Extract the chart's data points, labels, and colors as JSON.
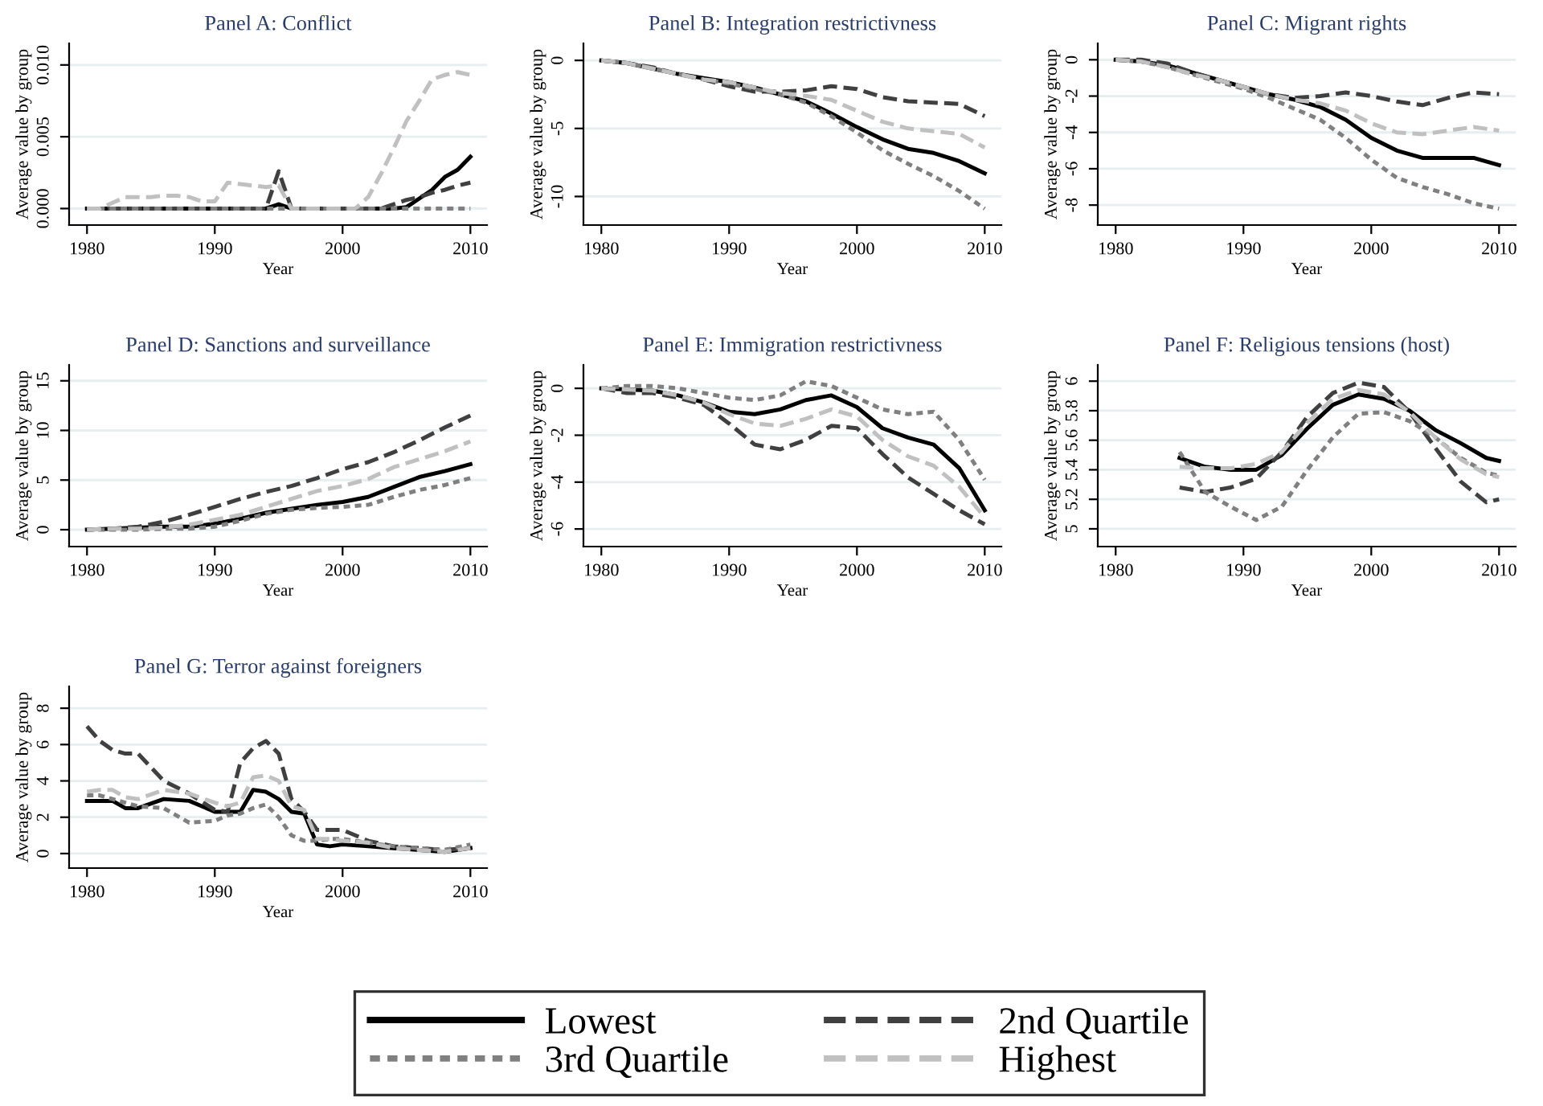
{
  "chart_data": [
    {
      "type": "line",
      "title": "Panel A: Conflict",
      "xlabel": "Year",
      "ylabel": "Average value by group",
      "x": [
        1980,
        1981,
        1982,
        1983,
        1984,
        1985,
        1986,
        1987,
        1988,
        1989,
        1990,
        1991,
        1992,
        1993,
        1994,
        1995,
        1996,
        1997,
        1998,
        1999,
        2000,
        2001,
        2002,
        2003,
        2004,
        2005,
        2006,
        2007,
        2008,
        2009,
        2010
      ],
      "xlim": [
        1978.6,
        2011.3
      ],
      "xticks": [
        1980,
        1990,
        2000,
        2010
      ],
      "ylim": [
        -0.00115,
        0.0115
      ],
      "yticks": [
        {
          "value": 0,
          "label": "0.000"
        },
        {
          "value": 0.005,
          "label": "0.005"
        },
        {
          "value": 0.01,
          "label": "0.010"
        }
      ],
      "grid": "y",
      "legend": "bottom",
      "series": [
        {
          "name": "Lowest",
          "color": "#000000",
          "line_style": "solid",
          "values": [
            0,
            0,
            0,
            0,
            0,
            0,
            0,
            0,
            0,
            0,
            0,
            0,
            0,
            0,
            0,
            0.0003,
            0,
            0,
            0,
            0,
            0,
            0,
            0,
            0,
            0,
            0.0001,
            0.0007,
            0.0013,
            0.0022,
            0.0027,
            0.0036
          ]
        },
        {
          "name": "2nd Quartile",
          "color": "#404040",
          "line_style": "dashed",
          "values": [
            0,
            0,
            0,
            0,
            0,
            0,
            0,
            0,
            0,
            0,
            0,
            0,
            0,
            0,
            0,
            0.0026,
            0,
            0,
            0,
            0,
            0,
            0,
            0,
            0,
            0.0003,
            0.0006,
            0.0008,
            0.0011,
            0.0013,
            0.0016,
            0.0018
          ]
        },
        {
          "name": "3rd Quartile",
          "color": "#808080",
          "line_style": "dotted",
          "values": [
            0,
            0,
            0,
            0,
            0,
            0,
            0,
            0,
            0,
            0,
            0,
            0,
            0,
            0,
            0,
            0,
            0,
            0,
            0,
            0,
            0,
            0,
            0,
            0,
            0,
            0,
            0,
            0,
            0,
            0,
            0
          ]
        },
        {
          "name": "Highest",
          "color": "#c0c0c0",
          "line_style": "dashed",
          "values": [
            0,
            0,
            0.0004,
            0.0008,
            0.0008,
            0.0008,
            0.0009,
            0.0009,
            0.0008,
            0.0005,
            0.0005,
            0.0018,
            0.0017,
            0.0016,
            0.0015,
            0.0016,
            0,
            0,
            0,
            0,
            0,
            0,
            0.0008,
            0.0024,
            0.0042,
            0.0061,
            0.0075,
            0.009,
            0.0093,
            0.0095,
            0.0093
          ]
        }
      ]
    },
    {
      "type": "line",
      "title": "Panel B: Integration restrictivness",
      "xlabel": "Year",
      "ylabel": "Average value by group",
      "x": [
        1980,
        1982,
        1984,
        1986,
        1988,
        1990,
        1992,
        1994,
        1996,
        1998,
        2000,
        2002,
        2004,
        2006,
        2008,
        2010
      ],
      "xlim": [
        1978.6,
        2011.3
      ],
      "xticks": [
        1980,
        1990,
        2000,
        2010
      ],
      "ylim": [
        -12.1,
        1.25
      ],
      "yticks": [
        0,
        -5,
        -10
      ],
      "grid": "y",
      "series": [
        {
          "color": "#000000",
          "line_style": "solid",
          "values": [
            0,
            -0.2,
            -0.6,
            -1.0,
            -1.3,
            -1.6,
            -2.0,
            -2.5,
            -3.0,
            -3.9,
            -4.9,
            -5.8,
            -6.5,
            -6.8,
            -7.4,
            -8.3
          ]
        },
        {
          "color": "#404040",
          "line_style": "dashed",
          "values": [
            0,
            -0.2,
            -0.5,
            -1.0,
            -1.4,
            -1.9,
            -2.3,
            -2.3,
            -2.2,
            -1.9,
            -2.1,
            -2.7,
            -3.0,
            -3.1,
            -3.2,
            -4.1
          ]
        },
        {
          "color": "#808080",
          "line_style": "dotted",
          "values": [
            0,
            -0.2,
            -0.6,
            -1.0,
            -1.4,
            -1.7,
            -2.1,
            -2.5,
            -3.1,
            -4.1,
            -5.3,
            -6.6,
            -7.6,
            -8.5,
            -9.6,
            -10.9
          ]
        },
        {
          "color": "#c0c0c0",
          "line_style": "dashed",
          "values": [
            0,
            -0.2,
            -0.6,
            -1.0,
            -1.4,
            -1.6,
            -2.0,
            -2.4,
            -2.6,
            -2.9,
            -3.7,
            -4.5,
            -5.0,
            -5.2,
            -5.4,
            -6.4
          ]
        }
      ]
    },
    {
      "type": "line",
      "title": "Panel C: Migrant rights",
      "xlabel": "Year",
      "ylabel": "Average value by group",
      "x": [
        1980,
        1982,
        1984,
        1986,
        1988,
        1990,
        1992,
        1994,
        1996,
        1998,
        2000,
        2002,
        2004,
        2006,
        2008,
        2010
      ],
      "xlim": [
        1978.6,
        2011.3
      ],
      "xticks": [
        1980,
        1990,
        2000,
        2010
      ],
      "ylim": [
        -9.1,
        0.9
      ],
      "yticks": [
        0,
        -2,
        -4,
        -6,
        -8
      ],
      "grid": "y",
      "series": [
        {
          "color": "#000000",
          "line_style": "solid",
          "values": [
            0,
            -0.1,
            -0.3,
            -0.7,
            -1.1,
            -1.5,
            -1.9,
            -2.2,
            -2.6,
            -3.3,
            -4.3,
            -5.0,
            -5.4,
            -5.4,
            -5.4,
            -5.8
          ]
        },
        {
          "color": "#404040",
          "line_style": "dashed",
          "values": [
            0,
            0,
            -0.2,
            -0.7,
            -1.1,
            -1.5,
            -1.9,
            -2.1,
            -2.0,
            -1.8,
            -2.0,
            -2.3,
            -2.5,
            -2.1,
            -1.8,
            -1.9
          ]
        },
        {
          "color": "#808080",
          "line_style": "dotted",
          "values": [
            0,
            -0.1,
            -0.4,
            -0.8,
            -1.2,
            -1.6,
            -2.1,
            -2.7,
            -3.3,
            -4.3,
            -5.5,
            -6.5,
            -7.0,
            -7.4,
            -7.9,
            -8.2
          ]
        },
        {
          "color": "#c0c0c0",
          "line_style": "dashed",
          "values": [
            0,
            -0.1,
            -0.4,
            -0.8,
            -1.1,
            -1.5,
            -1.9,
            -2.2,
            -2.4,
            -2.8,
            -3.5,
            -4.0,
            -4.1,
            -3.9,
            -3.7,
            -3.9
          ]
        }
      ]
    },
    {
      "type": "line",
      "title": "Panel D: Sanctions and surveillance",
      "xlabel": "Year",
      "ylabel": "Average value by group",
      "x": [
        1980,
        1982,
        1984,
        1986,
        1988,
        1990,
        1992,
        1994,
        1996,
        1998,
        2000,
        2002,
        2004,
        2006,
        2008,
        2010
      ],
      "xlim": [
        1978.6,
        2011.3
      ],
      "xticks": [
        1980,
        1990,
        2000,
        2010
      ],
      "ylim": [
        -1.7,
        16.6
      ],
      "yticks": [
        0,
        5,
        10,
        15
      ],
      "grid": "y",
      "series": [
        {
          "color": "#000000",
          "line_style": "solid",
          "values": [
            0,
            0.1,
            0.2,
            0.3,
            0.3,
            0.6,
            1.1,
            1.7,
            2.1,
            2.5,
            2.8,
            3.3,
            4.3,
            5.3,
            5.9,
            6.6
          ]
        },
        {
          "color": "#404040",
          "line_style": "dashed",
          "values": [
            0,
            0.1,
            0.3,
            0.8,
            1.5,
            2.3,
            3.1,
            3.8,
            4.4,
            5.2,
            6.1,
            6.8,
            7.8,
            9.0,
            10.3,
            11.5
          ]
        },
        {
          "color": "#808080",
          "line_style": "dotted",
          "values": [
            0,
            0,
            0,
            0.1,
            0.1,
            0.3,
            0.9,
            1.6,
            2.0,
            2.2,
            2.3,
            2.5,
            3.3,
            4.0,
            4.5,
            5.2
          ]
        },
        {
          "color": "#c0c0c0",
          "line_style": "dashed",
          "values": [
            0,
            0.1,
            0.1,
            0.2,
            0.5,
            1.0,
            1.5,
            2.3,
            3.1,
            3.9,
            4.4,
            5.1,
            6.3,
            7.1,
            7.9,
            8.9
          ]
        }
      ]
    },
    {
      "type": "line",
      "title": "Panel E: Immigration restrictivness",
      "xlabel": "Year",
      "ylabel": "Average value by group",
      "x": [
        1980,
        1982,
        1984,
        1986,
        1988,
        1990,
        1992,
        1994,
        1996,
        1998,
        2000,
        2002,
        2004,
        2006,
        2008,
        2010
      ],
      "xlim": [
        1978.6,
        2011.3
      ],
      "xticks": [
        1980,
        1990,
        2000,
        2010
      ],
      "ylim": [
        -6.75,
        1.0
      ],
      "yticks": [
        0,
        -2,
        -4,
        -6
      ],
      "grid": "y",
      "series": [
        {
          "color": "#000000",
          "line_style": "solid",
          "values": [
            0,
            -0.05,
            -0.1,
            -0.3,
            -0.6,
            -1.0,
            -1.1,
            -0.9,
            -0.5,
            -0.3,
            -0.8,
            -1.7,
            -2.1,
            -2.4,
            -3.4,
            -5.2
          ]
        },
        {
          "color": "#404040",
          "line_style": "dashed",
          "values": [
            0,
            -0.2,
            -0.2,
            -0.4,
            -0.7,
            -1.5,
            -2.4,
            -2.6,
            -2.2,
            -1.6,
            -1.7,
            -2.8,
            -3.8,
            -4.5,
            -5.2,
            -5.8
          ]
        },
        {
          "color": "#808080",
          "line_style": "dotted",
          "values": [
            0,
            0.1,
            0.1,
            0,
            -0.2,
            -0.4,
            -0.5,
            -0.3,
            0.3,
            0.1,
            -0.4,
            -0.9,
            -1.1,
            -1.0,
            -2.2,
            -3.9
          ]
        },
        {
          "color": "#c0c0c0",
          "line_style": "dashed",
          "values": [
            0,
            -0.05,
            -0.1,
            -0.3,
            -0.6,
            -1.1,
            -1.5,
            -1.6,
            -1.3,
            -0.9,
            -1.2,
            -2.2,
            -2.9,
            -3.3,
            -4.2,
            -5.5
          ]
        }
      ]
    },
    {
      "type": "line",
      "title": "Panel F: Religious tensions (host)",
      "xlabel": "Year",
      "ylabel": "Average value by group",
      "x": [
        1985,
        1987,
        1989,
        1991,
        1993,
        1995,
        1997,
        1999,
        2001,
        2003,
        2005,
        2007,
        2009,
        2010
      ],
      "xlim": [
        1978.6,
        2011.3
      ],
      "xticks": [
        1980,
        1990,
        2000,
        2010
      ],
      "ylim": [
        4.88,
        6.11
      ],
      "yticks": [
        5,
        5.2,
        5.4,
        5.6,
        5.8,
        6
      ],
      "grid": "y",
      "series": [
        {
          "color": "#000000",
          "line_style": "solid",
          "values": [
            5.48,
            5.42,
            5.4,
            5.4,
            5.5,
            5.68,
            5.84,
            5.91,
            5.88,
            5.8,
            5.67,
            5.58,
            5.48,
            5.46
          ]
        },
        {
          "color": "#404040",
          "line_style": "dashed",
          "values": [
            5.28,
            5.25,
            5.28,
            5.34,
            5.52,
            5.76,
            5.92,
            5.99,
            5.96,
            5.79,
            5.55,
            5.32,
            5.18,
            5.2
          ]
        },
        {
          "color": "#808080",
          "line_style": "dotted",
          "values": [
            5.52,
            5.25,
            5.15,
            5.06,
            5.15,
            5.4,
            5.62,
            5.78,
            5.79,
            5.73,
            5.62,
            5.48,
            5.38,
            5.36
          ]
        },
        {
          "color": "#c0c0c0",
          "line_style": "dashed",
          "values": [
            5.42,
            5.41,
            5.41,
            5.44,
            5.52,
            5.72,
            5.88,
            5.94,
            5.91,
            5.79,
            5.62,
            5.47,
            5.37,
            5.35
          ]
        }
      ]
    },
    {
      "type": "line",
      "title": "Panel G: Terror against foreigners",
      "xlabel": "Year",
      "ylabel": "Average value by group",
      "x": [
        1980,
        1981,
        1982,
        1983,
        1984,
        1986,
        1988,
        1990,
        1991,
        1992,
        1993,
        1994,
        1995,
        1996,
        1997,
        1998,
        1999,
        2000,
        2002,
        2004,
        2006,
        2008,
        2010
      ],
      "xlim": [
        1978.6,
        2011.3
      ],
      "xticks": [
        1980,
        1990,
        2000,
        2010
      ],
      "ylim": [
        -0.8,
        9.2
      ],
      "yticks": [
        0,
        2,
        4,
        6,
        8
      ],
      "grid": "y",
      "series": [
        {
          "color": "#000000",
          "line_style": "solid",
          "values": [
            2.9,
            2.9,
            2.9,
            2.5,
            2.5,
            3.0,
            2.9,
            2.3,
            2.3,
            2.3,
            3.5,
            3.4,
            3.0,
            2.3,
            2.2,
            0.5,
            0.4,
            0.5,
            0.4,
            0.3,
            0.2,
            0.1,
            0.3
          ]
        },
        {
          "color": "#404040",
          "line_style": "dashed",
          "values": [
            7.0,
            6.2,
            5.7,
            5.5,
            5.5,
            4.0,
            3.3,
            2.4,
            2.3,
            5.0,
            5.8,
            6.2,
            5.5,
            3.0,
            2.3,
            1.3,
            1.3,
            1.3,
            0.7,
            0.4,
            0.3,
            0.2,
            0.3
          ]
        },
        {
          "color": "#808080",
          "line_style": "dotted",
          "values": [
            3.2,
            3.2,
            3.0,
            2.8,
            2.6,
            2.5,
            1.7,
            1.8,
            2.1,
            2.2,
            2.5,
            2.7,
            2.0,
            1.0,
            0.7,
            0.7,
            0.8,
            0.8,
            0.6,
            0.4,
            0.3,
            0.2,
            0.5
          ]
        },
        {
          "color": "#c0c0c0",
          "line_style": "dashed",
          "values": [
            3.4,
            3.5,
            3.5,
            3.1,
            3.0,
            3.5,
            3.3,
            2.8,
            2.6,
            2.8,
            4.2,
            4.3,
            4.0,
            2.6,
            2.4,
            0.8,
            0.8,
            0.7,
            0.6,
            0.3,
            0.2,
            0.1,
            0.3
          ]
        }
      ]
    }
  ]
}
